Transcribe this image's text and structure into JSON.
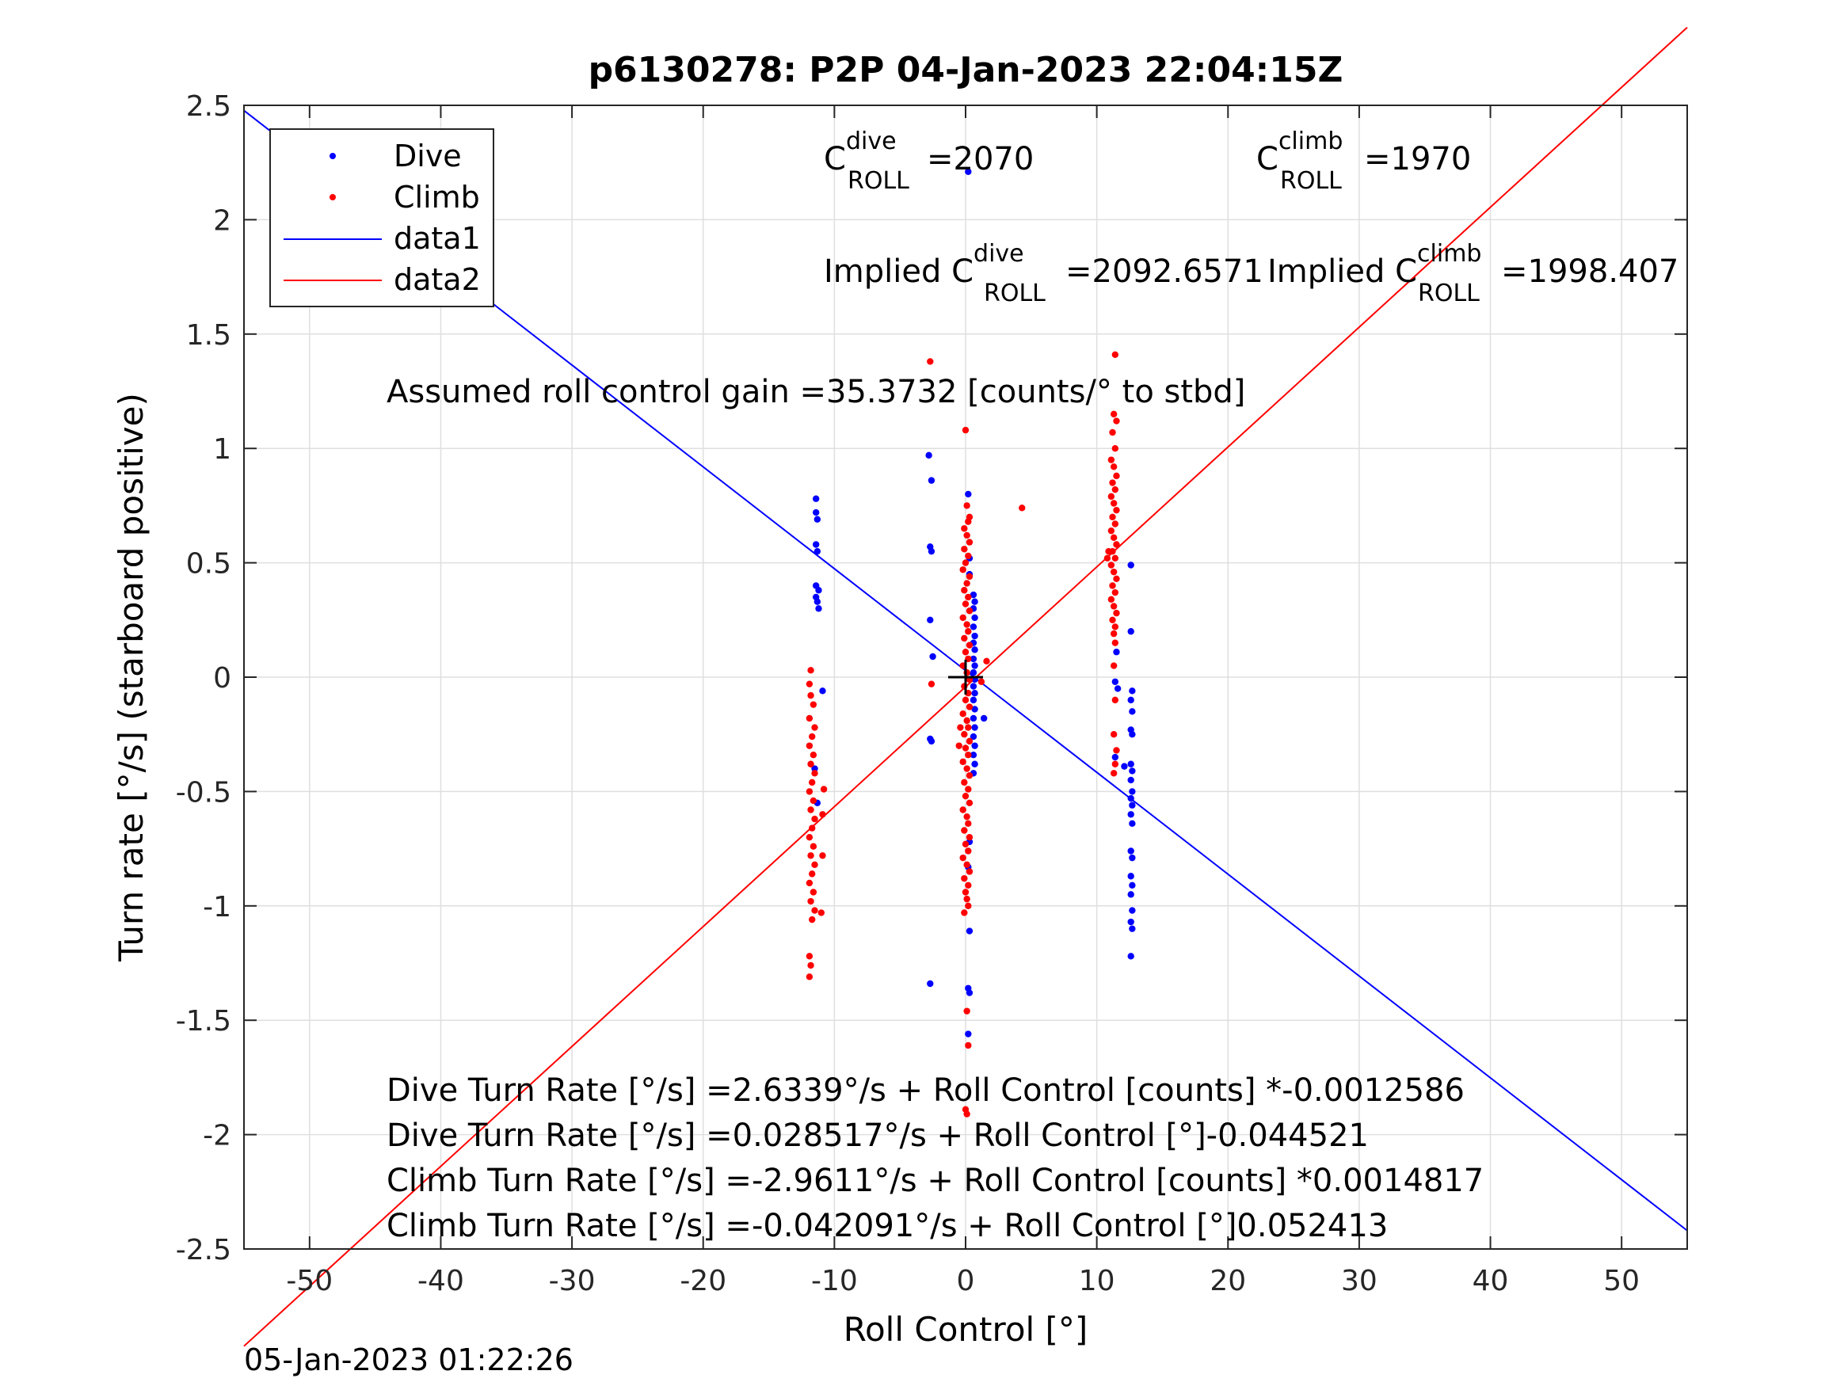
{
  "chart_data": {
    "type": "scatter",
    "title": "p6130278: P2P 04-Jan-2023 22:04:15Z",
    "xlabel": "Roll Control [°]",
    "ylabel": "Turn rate [°/s] (starboard positive)",
    "xlim": [
      -55,
      55
    ],
    "ylim": [
      -2.5,
      2.5
    ],
    "xticks": [
      -50,
      -40,
      -30,
      -20,
      -10,
      0,
      10,
      20,
      30,
      40,
      50
    ],
    "yticks": [
      -2.5,
      -2,
      -1.5,
      -1,
      -0.5,
      0,
      0.5,
      1,
      1.5,
      2,
      2.5
    ],
    "xtick_labels": [
      "-50",
      "-40",
      "-30",
      "-20",
      "-10",
      "0",
      "10",
      "20",
      "30",
      "40",
      "50"
    ],
    "ytick_labels": [
      "-2.5",
      "-2",
      "-1.5",
      "-1",
      "-0.5",
      "0",
      "0.5",
      "1",
      "1.5",
      "2",
      "2.5"
    ],
    "grid": true,
    "legend_position": "top-left",
    "timestamp": "05-Jan-2023 01:22:26",
    "series": [
      {
        "name": "Dive",
        "kind": "scatter",
        "color": "#0000ff",
        "points": [
          [
            -11.4,
            0.78
          ],
          [
            -11.4,
            0.72
          ],
          [
            -11.3,
            0.69
          ],
          [
            -11.4,
            0.58
          ],
          [
            -11.3,
            0.55
          ],
          [
            -11.4,
            0.4
          ],
          [
            -11.2,
            0.38
          ],
          [
            -11.4,
            0.35
          ],
          [
            -11.3,
            0.33
          ],
          [
            -11.2,
            0.3
          ],
          [
            -10.9,
            -0.06
          ],
          [
            -11.5,
            -0.4
          ],
          [
            -11.3,
            -0.55
          ],
          [
            -2.8,
            0.97
          ],
          [
            -2.6,
            0.86
          ],
          [
            -2.7,
            0.57
          ],
          [
            -2.6,
            0.55
          ],
          [
            -2.7,
            0.25
          ],
          [
            -2.5,
            0.09
          ],
          [
            -2.7,
            -0.27
          ],
          [
            -2.6,
            -0.28
          ],
          [
            -2.7,
            -1.34
          ],
          [
            0.2,
            2.21
          ],
          [
            0.2,
            0.8
          ],
          [
            0.3,
            0.52
          ],
          [
            0.3,
            0.45
          ],
          [
            0.6,
            0.36
          ],
          [
            0.7,
            0.33
          ],
          [
            0.6,
            0.3
          ],
          [
            0.7,
            0.26
          ],
          [
            0.6,
            0.22
          ],
          [
            0.7,
            0.18
          ],
          [
            0.6,
            0.15
          ],
          [
            0.7,
            0.12
          ],
          [
            0.6,
            0.08
          ],
          [
            0.7,
            0.05
          ],
          [
            0.6,
            0.02
          ],
          [
            0.7,
            -0.01
          ],
          [
            0.6,
            -0.04
          ],
          [
            0.7,
            -0.07
          ],
          [
            0.6,
            -0.1
          ],
          [
            0.7,
            -0.14
          ],
          [
            0.6,
            -0.18
          ],
          [
            0.7,
            -0.22
          ],
          [
            0.6,
            -0.26
          ],
          [
            0.7,
            -0.3
          ],
          [
            0.6,
            -0.34
          ],
          [
            0.7,
            -0.38
          ],
          [
            0.6,
            -0.42
          ],
          [
            1.4,
            -0.18
          ],
          [
            0.3,
            -0.72
          ],
          [
            0.2,
            -0.83
          ],
          [
            0.3,
            -1.11
          ],
          [
            0.2,
            -1.36
          ],
          [
            0.3,
            -1.38
          ],
          [
            0.2,
            -1.56
          ],
          [
            11.5,
            0.11
          ],
          [
            11.4,
            -0.02
          ],
          [
            11.6,
            -0.05
          ],
          [
            11.4,
            -0.35
          ],
          [
            12.1,
            -0.39
          ],
          [
            12.6,
            0.49
          ],
          [
            12.6,
            0.2
          ],
          [
            12.7,
            -0.06
          ],
          [
            12.6,
            -0.1
          ],
          [
            12.7,
            -0.15
          ],
          [
            12.6,
            -0.23
          ],
          [
            12.7,
            -0.25
          ],
          [
            12.6,
            -0.38
          ],
          [
            12.7,
            -0.41
          ],
          [
            12.6,
            -0.45
          ],
          [
            12.7,
            -0.5
          ],
          [
            12.6,
            -0.53
          ],
          [
            12.7,
            -0.56
          ],
          [
            12.6,
            -0.6
          ],
          [
            12.7,
            -0.64
          ],
          [
            12.6,
            -0.76
          ],
          [
            12.7,
            -0.79
          ],
          [
            12.6,
            -0.87
          ],
          [
            12.7,
            -0.91
          ],
          [
            12.6,
            -0.95
          ],
          [
            12.7,
            -1.02
          ],
          [
            12.6,
            -1.07
          ],
          [
            12.7,
            -1.1
          ],
          [
            12.6,
            -1.22
          ]
        ]
      },
      {
        "name": "Climb",
        "kind": "scatter",
        "color": "#ff0000",
        "points": [
          [
            -11.8,
            -0.08
          ],
          [
            -11.6,
            -0.12
          ],
          [
            -11.9,
            -0.18
          ],
          [
            -11.5,
            -0.22
          ],
          [
            -11.7,
            -0.26
          ],
          [
            -11.9,
            -0.3
          ],
          [
            -11.6,
            -0.34
          ],
          [
            -11.8,
            -0.38
          ],
          [
            -11.5,
            -0.42
          ],
          [
            -11.7,
            -0.46
          ],
          [
            -11.9,
            -0.5
          ],
          [
            -11.6,
            -0.54
          ],
          [
            -11.8,
            -0.58
          ],
          [
            -11.5,
            -0.62
          ],
          [
            -11.7,
            -0.66
          ],
          [
            -11.9,
            -0.7
          ],
          [
            -11.6,
            -0.74
          ],
          [
            -11.8,
            -0.78
          ],
          [
            -11.5,
            -0.82
          ],
          [
            -11.7,
            -0.86
          ],
          [
            -11.9,
            -0.9
          ],
          [
            -11.6,
            -0.94
          ],
          [
            -11.8,
            -0.98
          ],
          [
            -11.5,
            -1.02
          ],
          [
            -11.7,
            -1.06
          ],
          [
            -11.9,
            -1.22
          ],
          [
            -11.8,
            -1.26
          ],
          [
            -11.9,
            -1.31
          ],
          [
            -10.8,
            -0.49
          ],
          [
            -10.9,
            -0.6
          ],
          [
            -10.9,
            -0.78
          ],
          [
            -11.0,
            -1.03
          ],
          [
            -11.9,
            -0.03
          ],
          [
            -11.8,
            0.03
          ],
          [
            -2.7,
            1.38
          ],
          [
            -2.6,
            -0.03
          ],
          [
            -0.4,
            -0.22
          ],
          [
            -0.5,
            -0.3
          ],
          [
            0.0,
            1.08
          ],
          [
            0.1,
            0.75
          ],
          [
            0.3,
            0.7
          ],
          [
            0.2,
            0.68
          ],
          [
            -0.1,
            0.65
          ],
          [
            0.1,
            0.62
          ],
          [
            0.3,
            0.59
          ],
          [
            -0.1,
            0.56
          ],
          [
            0.2,
            0.53
          ],
          [
            0.0,
            0.5
          ],
          [
            -0.2,
            0.47
          ],
          [
            0.3,
            0.44
          ],
          [
            0.1,
            0.41
          ],
          [
            -0.1,
            0.38
          ],
          [
            0.2,
            0.35
          ],
          [
            0.0,
            0.32
          ],
          [
            0.3,
            0.29
          ],
          [
            -0.2,
            0.26
          ],
          [
            0.1,
            0.23
          ],
          [
            0.2,
            0.2
          ],
          [
            -0.1,
            0.17
          ],
          [
            0.3,
            0.14
          ],
          [
            0.0,
            0.11
          ],
          [
            0.2,
            0.08
          ],
          [
            -0.2,
            0.05
          ],
          [
            0.1,
            0.02
          ],
          [
            0.3,
            -0.01
          ],
          [
            -0.1,
            -0.04
          ],
          [
            0.2,
            -0.07
          ],
          [
            0.0,
            -0.1
          ],
          [
            0.3,
            -0.13
          ],
          [
            -0.2,
            -0.16
          ],
          [
            0.1,
            -0.19
          ],
          [
            0.2,
            -0.22
          ],
          [
            -0.1,
            -0.25
          ],
          [
            0.3,
            -0.28
          ],
          [
            0.0,
            -0.31
          ],
          [
            0.2,
            -0.34
          ],
          [
            -0.2,
            -0.37
          ],
          [
            0.1,
            -0.4
          ],
          [
            0.3,
            -0.43
          ],
          [
            -0.1,
            -0.46
          ],
          [
            0.2,
            -0.49
          ],
          [
            0.0,
            -0.52
          ],
          [
            0.3,
            -0.55
          ],
          [
            -0.2,
            -0.58
          ],
          [
            0.1,
            -0.61
          ],
          [
            0.2,
            -0.64
          ],
          [
            -0.1,
            -0.67
          ],
          [
            0.3,
            -0.7
          ],
          [
            0.0,
            -0.73
          ],
          [
            0.2,
            -0.76
          ],
          [
            -0.2,
            -0.79
          ],
          [
            0.1,
            -0.82
          ],
          [
            0.3,
            -0.85
          ],
          [
            -0.1,
            -0.88
          ],
          [
            0.2,
            -0.91
          ],
          [
            0.0,
            -0.94
          ],
          [
            0.1,
            -0.97
          ],
          [
            0.2,
            -1.0
          ],
          [
            -0.1,
            -1.03
          ],
          [
            0.1,
            -1.46
          ],
          [
            0.2,
            -1.61
          ],
          [
            0.0,
            -1.89
          ],
          [
            0.1,
            -1.91
          ],
          [
            1.6,
            0.07
          ],
          [
            1.2,
            -0.02
          ],
          [
            4.3,
            0.74
          ],
          [
            11.4,
            1.41
          ],
          [
            11.3,
            1.15
          ],
          [
            11.5,
            1.12
          ],
          [
            11.2,
            1.07
          ],
          [
            11.4,
            1.0
          ],
          [
            11.1,
            0.95
          ],
          [
            11.3,
            0.92
          ],
          [
            11.5,
            0.88
          ],
          [
            11.2,
            0.85
          ],
          [
            11.4,
            0.82
          ],
          [
            11.1,
            0.79
          ],
          [
            11.3,
            0.76
          ],
          [
            11.5,
            0.73
          ],
          [
            11.2,
            0.7
          ],
          [
            11.4,
            0.67
          ],
          [
            11.1,
            0.64
          ],
          [
            11.3,
            0.61
          ],
          [
            11.5,
            0.58
          ],
          [
            11.2,
            0.55
          ],
          [
            11.4,
            0.52
          ],
          [
            11.1,
            0.49
          ],
          [
            11.3,
            0.46
          ],
          [
            11.5,
            0.43
          ],
          [
            11.2,
            0.4
          ],
          [
            11.4,
            0.37
          ],
          [
            11.1,
            0.34
          ],
          [
            11.3,
            0.31
          ],
          [
            11.5,
            0.28
          ],
          [
            11.2,
            0.25
          ],
          [
            11.4,
            0.22
          ],
          [
            11.3,
            0.19
          ],
          [
            11.4,
            0.15
          ],
          [
            11.3,
            0.05
          ],
          [
            11.4,
            -0.1
          ],
          [
            11.3,
            -0.25
          ],
          [
            11.5,
            -0.32
          ],
          [
            11.4,
            -0.38
          ],
          [
            11.3,
            -0.42
          ],
          [
            10.9,
            0.55
          ],
          [
            10.8,
            0.52
          ]
        ]
      },
      {
        "name": "data1",
        "kind": "line",
        "color": "#0000ff",
        "points": [
          [
            -55,
            2.4774
          ],
          [
            55,
            -2.4195
          ]
        ]
      },
      {
        "name": "data2",
        "kind": "line",
        "color": "#ff0000",
        "points": [
          [
            -55,
            -2.9248
          ],
          [
            55,
            2.8407
          ]
        ]
      }
    ],
    "crosshair": {
      "x": 0,
      "y": 0,
      "color": "#000000"
    },
    "annotations": {
      "c_roll_dive": {
        "prefix": "C",
        "sup": "dive",
        "sub": "ROLL",
        "value": "=2070"
      },
      "c_roll_climb": {
        "prefix": "C",
        "sup": "climb",
        "sub": "ROLL",
        "value": "=1970"
      },
      "implied_dive": {
        "prefix": "Implied C",
        "sup": "dive",
        "sub": "ROLL",
        "value": "=2092.6571"
      },
      "implied_climb": {
        "prefix": "Implied C",
        "sup": "climb",
        "sub": "ROLL",
        "value": "=1998.407"
      },
      "gain": "Assumed roll control gain =35.3732 [counts/° to stbd]",
      "fit_lines": [
        "Dive Turn Rate [°/s] =2.6339°/s + Roll Control [counts] *-0.0012586",
        "Dive Turn Rate [°/s] =0.028517°/s + Roll Control [°]-0.044521",
        "Climb Turn Rate [°/s] =-2.9611°/s + Roll Control [counts] *0.0014817",
        "Climb Turn Rate [°/s] =-0.042091°/s + Roll Control [°]0.052413"
      ]
    }
  }
}
